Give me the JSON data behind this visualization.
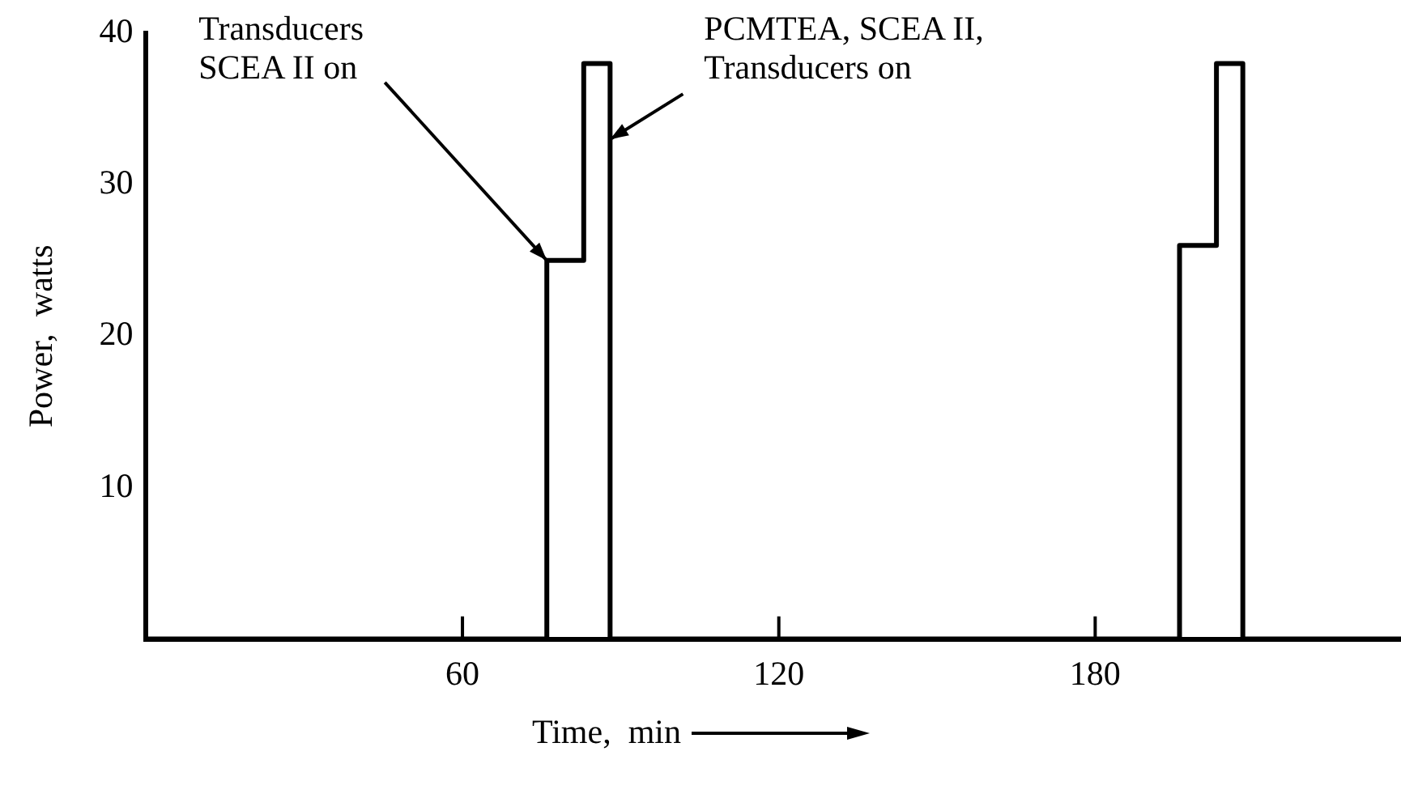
{
  "chart_data": {
    "type": "step",
    "xlabel": "Time,  min",
    "ylabel": "Power,  watts",
    "x": [
      0,
      76,
      83,
      88,
      196,
      203,
      208,
      238
    ],
    "values": [
      0,
      25,
      38,
      0,
      26,
      38,
      0,
      0
    ],
    "color": "#000000",
    "xlim": [
      0,
      238
    ],
    "ylim": [
      0,
      40
    ],
    "xticks": [
      60,
      120,
      180
    ],
    "yticks": [
      10,
      20,
      30,
      40
    ],
    "grid": false,
    "legend": false,
    "marker": "none",
    "line_style": "solid",
    "annotations": [
      {
        "text": "Transducers\nSCEA II on",
        "x": 76,
        "y": 25
      },
      {
        "text": "PCMTEA, SCEA II,\nTransducers on",
        "x": 88,
        "y": 33
      }
    ]
  }
}
